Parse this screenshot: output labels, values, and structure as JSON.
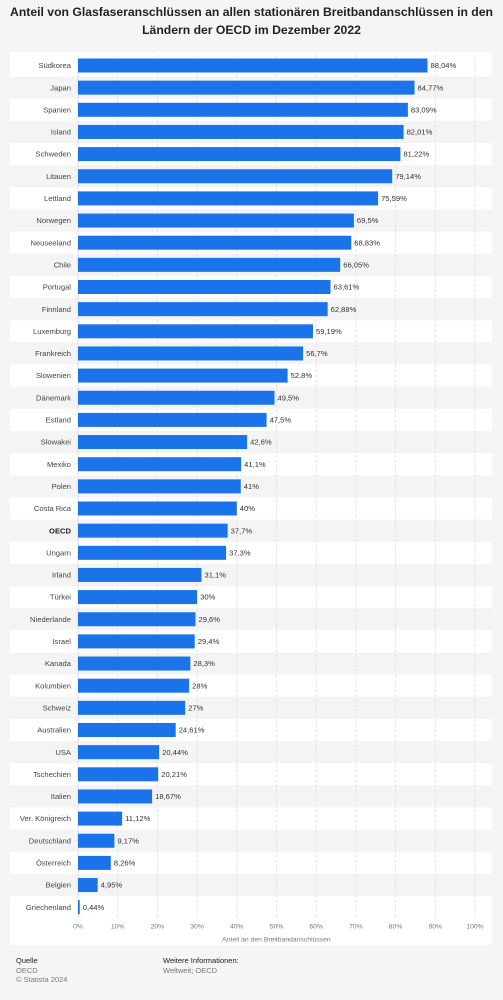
{
  "chart_data": {
    "type": "bar",
    "orientation": "horizontal",
    "title": "Anteil von Glasfaseranschlüssen an allen stationären Breitbandanschlüssen in den Ländern der OECD im Dezember 2022",
    "xlabel": "Anteil an den Breitbandanschlüssen",
    "ylabel": "",
    "xlim": [
      0,
      100
    ],
    "xticks": [
      "0%",
      "10%",
      "20%",
      "30%",
      "40%",
      "50%",
      "60%",
      "70%",
      "80%",
      "90%",
      "100%"
    ],
    "grid": true,
    "bar_color": "#1a73e8",
    "categories": [
      "Südkorea",
      "Japan",
      "Spanien",
      "Island",
      "Schweden",
      "Litauen",
      "Lettland",
      "Norwegen",
      "Neuseeland",
      "Chile",
      "Portugal",
      "Finnland",
      "Luxemburg",
      "Frankreich",
      "Slowenien",
      "Dänemark",
      "Estland",
      "Slowakei",
      "Mexiko",
      "Polen",
      "Costa Rica",
      "OECD",
      "Ungarn",
      "Irland",
      "Türkei",
      "Niederlande",
      "Israel",
      "Kanada",
      "Kolumbien",
      "Schweiz",
      "Australien",
      "USA",
      "Tschechien",
      "Italien",
      "Ver. Königreich",
      "Deutschland",
      "Österreich",
      "Belgien",
      "Griechenland"
    ],
    "values": [
      88.04,
      84.77,
      83.09,
      82.01,
      81.22,
      79.14,
      75.59,
      69.5,
      68.83,
      66.05,
      63.61,
      62.88,
      59.19,
      56.7,
      52.8,
      49.5,
      47.5,
      42.6,
      41.1,
      41,
      40,
      37.7,
      37.3,
      31.1,
      30,
      29.6,
      29.4,
      28.3,
      28,
      27,
      24.61,
      20.44,
      20.21,
      18.67,
      11.12,
      9.17,
      8.26,
      4.95,
      0.44
    ],
    "value_labels": [
      "88,04%",
      "84,77%",
      "83,09%",
      "82,01%",
      "81,22%",
      "79,14%",
      "75,59%",
      "69,5%",
      "68,83%",
      "66,05%",
      "63,61%",
      "62,88%",
      "59,19%",
      "56,7%",
      "52,8%",
      "49,5%",
      "47,5%",
      "42,6%",
      "41,1%",
      "41%",
      "40%",
      "37,7%",
      "37,3%",
      "31,1%",
      "30%",
      "29,6%",
      "29,4%",
      "28,3%",
      "28%",
      "27%",
      "24,61%",
      "20,44%",
      "20,21%",
      "18,67%",
      "11,12%",
      "9,17%",
      "8,26%",
      "4,95%",
      "0,44%"
    ],
    "highlight_category": "OECD"
  },
  "footer": {
    "source_heading": "Quelle",
    "source": "OECD",
    "copyright": "© Statista 2024",
    "info_heading": "Weitere Informationen:",
    "info": "Weltweit; OECD"
  }
}
